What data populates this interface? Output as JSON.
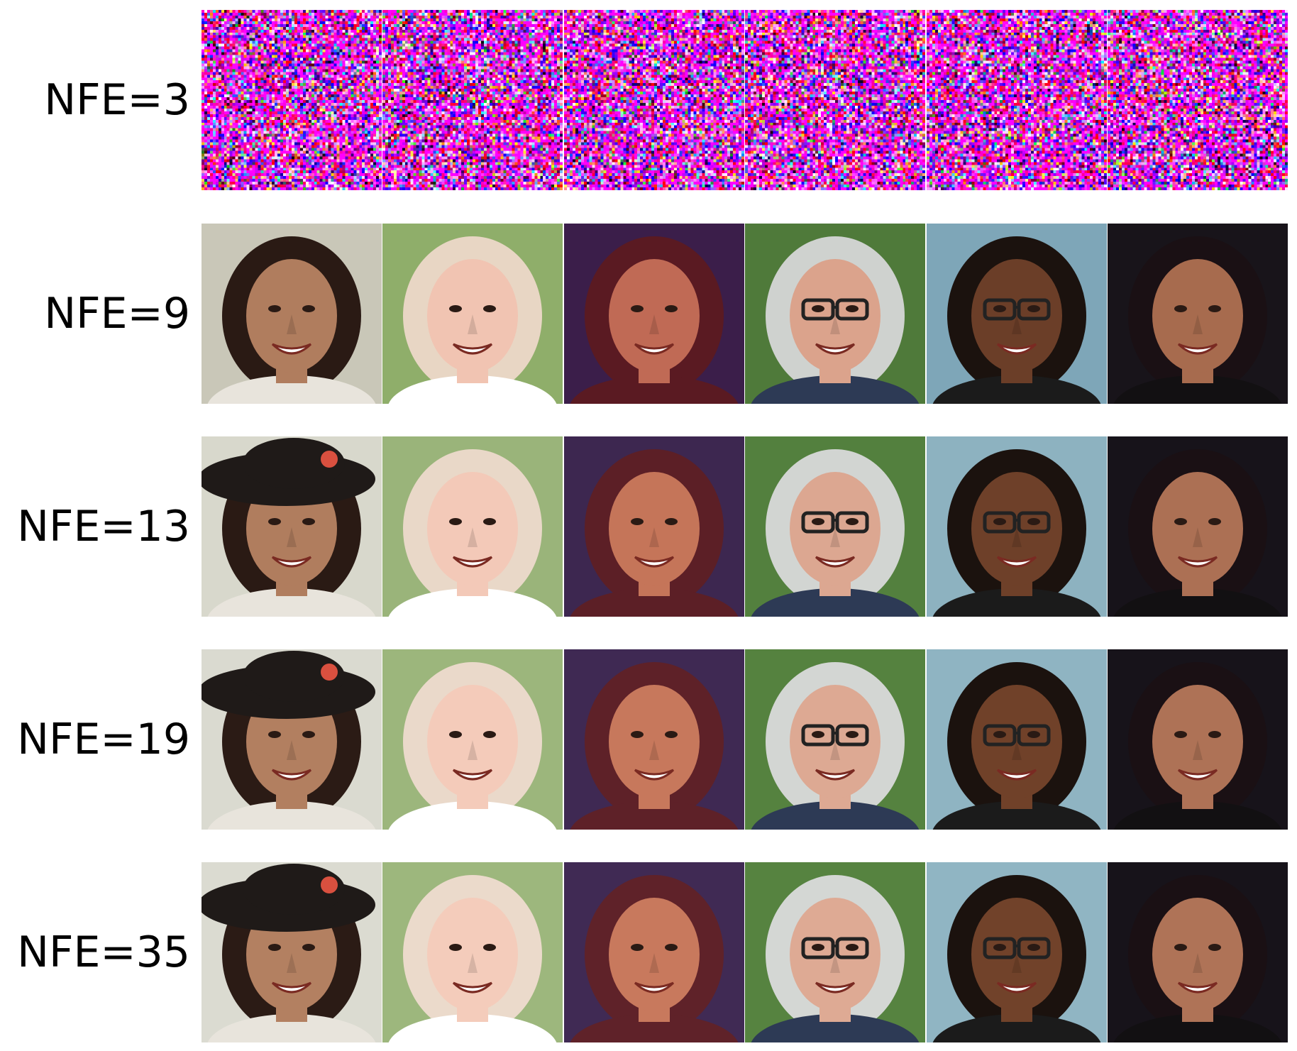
{
  "figure": {
    "rows": [
      {
        "label": "NFE=3",
        "tiles": [
          {
            "content": "noise"
          },
          {
            "content": "noise"
          },
          {
            "content": "noise"
          },
          {
            "content": "noise"
          },
          {
            "content": "noise"
          },
          {
            "content": "noise"
          }
        ]
      },
      {
        "label": "NFE=9",
        "tiles": [
          {
            "content": "face",
            "bg": "#c9c7b8",
            "hair": "#2a1a14",
            "skin": "#b07d5e",
            "hat": false,
            "clothes": "#e8e4dc",
            "glasses": false
          },
          {
            "content": "face",
            "bg": "#8fae6a",
            "hair": "#e8d6c4",
            "skin": "#f1c4b2",
            "hat": false,
            "clothes": "#ffffff",
            "glasses": false
          },
          {
            "content": "face",
            "bg": "#3b1e4a",
            "hair": "#5a1a22",
            "skin": "#c06a55",
            "hat": false,
            "clothes": "#5a1a22",
            "glasses": false
          },
          {
            "content": "face",
            "bg": "#4f7a3a",
            "hair": "#cfd2cf",
            "skin": "#dba38c",
            "hat": false,
            "clothes": "#2d3a55",
            "glasses": true
          },
          {
            "content": "face",
            "bg": "#7ea6b8",
            "hair": "#1b120e",
            "skin": "#6b3e28",
            "hat": false,
            "clothes": "#1b1b1b",
            "glasses": true
          },
          {
            "content": "face",
            "bg": "#18141a",
            "hair": "#1a1014",
            "skin": "#a76b4e",
            "hat": false,
            "clothes": "#121012",
            "glasses": false
          }
        ]
      },
      {
        "label": "NFE=13",
        "tiles": [
          {
            "content": "face",
            "bg": "#d8d8cc",
            "hair": "#2a1a14",
            "skin": "#b07d5e",
            "hat": true,
            "clothes": "#e8e4dc",
            "glasses": false
          },
          {
            "content": "face",
            "bg": "#9ab47a",
            "hair": "#e9d8c8",
            "skin": "#f3c9b8",
            "hat": false,
            "clothes": "#ffffff",
            "glasses": false
          },
          {
            "content": "face",
            "bg": "#3d2750",
            "hair": "#5c1f26",
            "skin": "#c57559",
            "hat": false,
            "clothes": "#5c1f26",
            "glasses": false
          },
          {
            "content": "face",
            "bg": "#53803e",
            "hair": "#d2d5d2",
            "skin": "#dca791",
            "hat": false,
            "clothes": "#2d3a55",
            "glasses": true
          },
          {
            "content": "face",
            "bg": "#8db2c0",
            "hair": "#1b120e",
            "skin": "#6e4029",
            "hat": false,
            "clothes": "#1b1b1b",
            "glasses": true
          },
          {
            "content": "face",
            "bg": "#17131a",
            "hair": "#1a1014",
            "skin": "#ac7054",
            "hat": false,
            "clothes": "#121012",
            "glasses": false
          }
        ]
      },
      {
        "label": "NFE=19",
        "tiles": [
          {
            "content": "face",
            "bg": "#dadad0",
            "hair": "#2b1b15",
            "skin": "#b27f60",
            "hat": true,
            "clothes": "#e8e4dc",
            "glasses": false
          },
          {
            "content": "face",
            "bg": "#9cb67c",
            "hair": "#ead9ca",
            "skin": "#f4cbba",
            "hat": false,
            "clothes": "#ffffff",
            "glasses": false
          },
          {
            "content": "face",
            "bg": "#3f2953",
            "hair": "#5e2128",
            "skin": "#c7785c",
            "hat": false,
            "clothes": "#5e2128",
            "glasses": false
          },
          {
            "content": "face",
            "bg": "#55823f",
            "hair": "#d3d6d3",
            "skin": "#dda993",
            "hat": false,
            "clothes": "#2d3a55",
            "glasses": true
          },
          {
            "content": "face",
            "bg": "#8fb4c2",
            "hair": "#1b120e",
            "skin": "#704129",
            "hat": false,
            "clothes": "#1b1b1b",
            "glasses": true
          },
          {
            "content": "face",
            "bg": "#17131a",
            "hair": "#1a1014",
            "skin": "#ae7256",
            "hat": false,
            "clothes": "#121012",
            "glasses": false
          }
        ]
      },
      {
        "label": "NFE=35",
        "tiles": [
          {
            "content": "face",
            "bg": "#dbdbd1",
            "hair": "#2b1b15",
            "skin": "#b38061",
            "hat": true,
            "clothes": "#e8e4dc",
            "glasses": false
          },
          {
            "content": "face",
            "bg": "#9db77d",
            "hair": "#ebdacb",
            "skin": "#f4ccbb",
            "hat": false,
            "clothes": "#ffffff",
            "glasses": false
          },
          {
            "content": "face",
            "bg": "#402a54",
            "hair": "#5f2229",
            "skin": "#c8795d",
            "hat": false,
            "clothes": "#5f2229",
            "glasses": false
          },
          {
            "content": "face",
            "bg": "#568340",
            "hair": "#d4d7d4",
            "skin": "#deaa94",
            "hat": false,
            "clothes": "#2d3a55",
            "glasses": true
          },
          {
            "content": "face",
            "bg": "#90b5c3",
            "hair": "#1b120e",
            "skin": "#71422a",
            "hat": false,
            "clothes": "#1b1b1b",
            "glasses": true
          },
          {
            "content": "face",
            "bg": "#17131a",
            "hair": "#1a1014",
            "skin": "#af7357",
            "hat": false,
            "clothes": "#121012",
            "glasses": false
          }
        ]
      }
    ]
  }
}
